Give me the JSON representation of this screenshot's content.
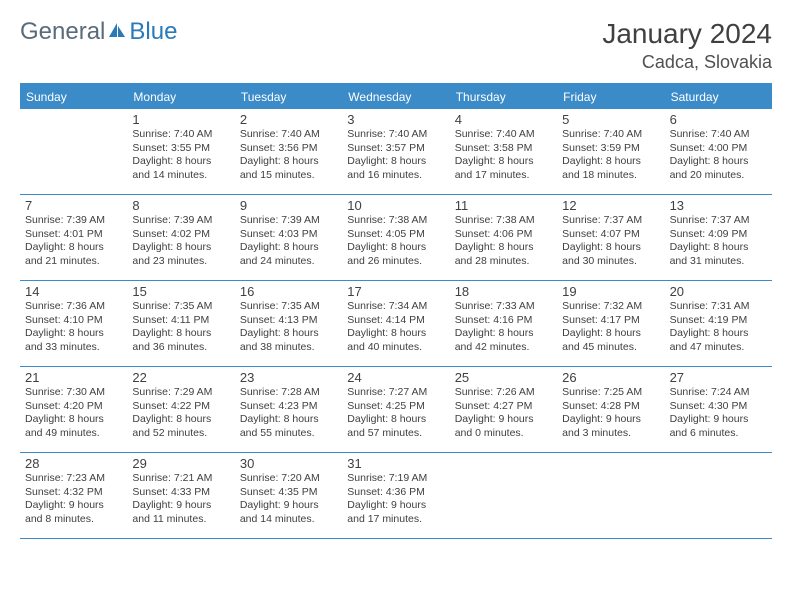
{
  "logo": {
    "text1": "General",
    "text2": "Blue"
  },
  "title": "January 2024",
  "location": "Cadca, Slovakia",
  "colors": {
    "header_bg": "#3b8bc9",
    "header_text": "#ffffff",
    "border": "#3b8bc9",
    "body_text": "#404040",
    "logo_gray": "#5a6b7a",
    "logo_blue": "#2a7ab8",
    "background": "#ffffff"
  },
  "weekdays": [
    "Sunday",
    "Monday",
    "Tuesday",
    "Wednesday",
    "Thursday",
    "Friday",
    "Saturday"
  ],
  "cells": [
    {
      "blank": true
    },
    {
      "day": "1",
      "sunrise": "Sunrise: 7:40 AM",
      "sunset": "Sunset: 3:55 PM",
      "dl1": "Daylight: 8 hours",
      "dl2": "and 14 minutes."
    },
    {
      "day": "2",
      "sunrise": "Sunrise: 7:40 AM",
      "sunset": "Sunset: 3:56 PM",
      "dl1": "Daylight: 8 hours",
      "dl2": "and 15 minutes."
    },
    {
      "day": "3",
      "sunrise": "Sunrise: 7:40 AM",
      "sunset": "Sunset: 3:57 PM",
      "dl1": "Daylight: 8 hours",
      "dl2": "and 16 minutes."
    },
    {
      "day": "4",
      "sunrise": "Sunrise: 7:40 AM",
      "sunset": "Sunset: 3:58 PM",
      "dl1": "Daylight: 8 hours",
      "dl2": "and 17 minutes."
    },
    {
      "day": "5",
      "sunrise": "Sunrise: 7:40 AM",
      "sunset": "Sunset: 3:59 PM",
      "dl1": "Daylight: 8 hours",
      "dl2": "and 18 minutes."
    },
    {
      "day": "6",
      "sunrise": "Sunrise: 7:40 AM",
      "sunset": "Sunset: 4:00 PM",
      "dl1": "Daylight: 8 hours",
      "dl2": "and 20 minutes."
    },
    {
      "day": "7",
      "sunrise": "Sunrise: 7:39 AM",
      "sunset": "Sunset: 4:01 PM",
      "dl1": "Daylight: 8 hours",
      "dl2": "and 21 minutes."
    },
    {
      "day": "8",
      "sunrise": "Sunrise: 7:39 AM",
      "sunset": "Sunset: 4:02 PM",
      "dl1": "Daylight: 8 hours",
      "dl2": "and 23 minutes."
    },
    {
      "day": "9",
      "sunrise": "Sunrise: 7:39 AM",
      "sunset": "Sunset: 4:03 PM",
      "dl1": "Daylight: 8 hours",
      "dl2": "and 24 minutes."
    },
    {
      "day": "10",
      "sunrise": "Sunrise: 7:38 AM",
      "sunset": "Sunset: 4:05 PM",
      "dl1": "Daylight: 8 hours",
      "dl2": "and 26 minutes."
    },
    {
      "day": "11",
      "sunrise": "Sunrise: 7:38 AM",
      "sunset": "Sunset: 4:06 PM",
      "dl1": "Daylight: 8 hours",
      "dl2": "and 28 minutes."
    },
    {
      "day": "12",
      "sunrise": "Sunrise: 7:37 AM",
      "sunset": "Sunset: 4:07 PM",
      "dl1": "Daylight: 8 hours",
      "dl2": "and 30 minutes."
    },
    {
      "day": "13",
      "sunrise": "Sunrise: 7:37 AM",
      "sunset": "Sunset: 4:09 PM",
      "dl1": "Daylight: 8 hours",
      "dl2": "and 31 minutes."
    },
    {
      "day": "14",
      "sunrise": "Sunrise: 7:36 AM",
      "sunset": "Sunset: 4:10 PM",
      "dl1": "Daylight: 8 hours",
      "dl2": "and 33 minutes."
    },
    {
      "day": "15",
      "sunrise": "Sunrise: 7:35 AM",
      "sunset": "Sunset: 4:11 PM",
      "dl1": "Daylight: 8 hours",
      "dl2": "and 36 minutes."
    },
    {
      "day": "16",
      "sunrise": "Sunrise: 7:35 AM",
      "sunset": "Sunset: 4:13 PM",
      "dl1": "Daylight: 8 hours",
      "dl2": "and 38 minutes."
    },
    {
      "day": "17",
      "sunrise": "Sunrise: 7:34 AM",
      "sunset": "Sunset: 4:14 PM",
      "dl1": "Daylight: 8 hours",
      "dl2": "and 40 minutes."
    },
    {
      "day": "18",
      "sunrise": "Sunrise: 7:33 AM",
      "sunset": "Sunset: 4:16 PM",
      "dl1": "Daylight: 8 hours",
      "dl2": "and 42 minutes."
    },
    {
      "day": "19",
      "sunrise": "Sunrise: 7:32 AM",
      "sunset": "Sunset: 4:17 PM",
      "dl1": "Daylight: 8 hours",
      "dl2": "and 45 minutes."
    },
    {
      "day": "20",
      "sunrise": "Sunrise: 7:31 AM",
      "sunset": "Sunset: 4:19 PM",
      "dl1": "Daylight: 8 hours",
      "dl2": "and 47 minutes."
    },
    {
      "day": "21",
      "sunrise": "Sunrise: 7:30 AM",
      "sunset": "Sunset: 4:20 PM",
      "dl1": "Daylight: 8 hours",
      "dl2": "and 49 minutes."
    },
    {
      "day": "22",
      "sunrise": "Sunrise: 7:29 AM",
      "sunset": "Sunset: 4:22 PM",
      "dl1": "Daylight: 8 hours",
      "dl2": "and 52 minutes."
    },
    {
      "day": "23",
      "sunrise": "Sunrise: 7:28 AM",
      "sunset": "Sunset: 4:23 PM",
      "dl1": "Daylight: 8 hours",
      "dl2": "and 55 minutes."
    },
    {
      "day": "24",
      "sunrise": "Sunrise: 7:27 AM",
      "sunset": "Sunset: 4:25 PM",
      "dl1": "Daylight: 8 hours",
      "dl2": "and 57 minutes."
    },
    {
      "day": "25",
      "sunrise": "Sunrise: 7:26 AM",
      "sunset": "Sunset: 4:27 PM",
      "dl1": "Daylight: 9 hours",
      "dl2": "and 0 minutes."
    },
    {
      "day": "26",
      "sunrise": "Sunrise: 7:25 AM",
      "sunset": "Sunset: 4:28 PM",
      "dl1": "Daylight: 9 hours",
      "dl2": "and 3 minutes."
    },
    {
      "day": "27",
      "sunrise": "Sunrise: 7:24 AM",
      "sunset": "Sunset: 4:30 PM",
      "dl1": "Daylight: 9 hours",
      "dl2": "and 6 minutes."
    },
    {
      "day": "28",
      "sunrise": "Sunrise: 7:23 AM",
      "sunset": "Sunset: 4:32 PM",
      "dl1": "Daylight: 9 hours",
      "dl2": "and 8 minutes."
    },
    {
      "day": "29",
      "sunrise": "Sunrise: 7:21 AM",
      "sunset": "Sunset: 4:33 PM",
      "dl1": "Daylight: 9 hours",
      "dl2": "and 11 minutes."
    },
    {
      "day": "30",
      "sunrise": "Sunrise: 7:20 AM",
      "sunset": "Sunset: 4:35 PM",
      "dl1": "Daylight: 9 hours",
      "dl2": "and 14 minutes."
    },
    {
      "day": "31",
      "sunrise": "Sunrise: 7:19 AM",
      "sunset": "Sunset: 4:36 PM",
      "dl1": "Daylight: 9 hours",
      "dl2": "and 17 minutes."
    },
    {
      "blank": true
    },
    {
      "blank": true
    },
    {
      "blank": true
    }
  ]
}
